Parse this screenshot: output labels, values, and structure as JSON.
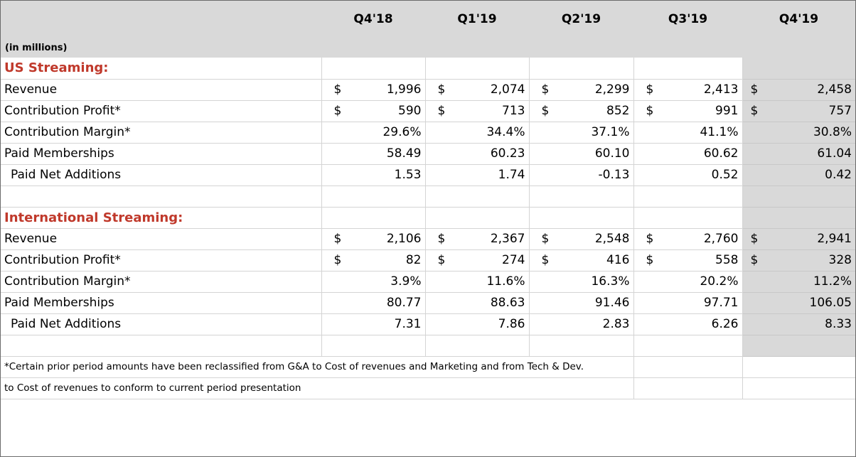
{
  "header": {
    "units_label": "(in millions)",
    "quarters": [
      "Q4'18",
      "Q1'19",
      "Q2'19",
      "Q3'19",
      "Q4'19"
    ]
  },
  "sections": [
    {
      "title": "US Streaming:",
      "rows": [
        {
          "label": "Revenue",
          "dollar": true,
          "values": [
            "1,996",
            "2,074",
            "2,299",
            "2,413",
            "2,458"
          ]
        },
        {
          "label": "Contribution Profit*",
          "dollar": true,
          "values": [
            "590",
            "713",
            "852",
            "991",
            "757"
          ]
        },
        {
          "label": "Contribution Margin*",
          "dollar": false,
          "values": [
            "29.6%",
            "34.4%",
            "37.1%",
            "41.1%",
            "30.8%"
          ]
        },
        {
          "label": "Paid Memberships",
          "dollar": false,
          "values": [
            "58.49",
            "60.23",
            "60.10",
            "60.62",
            "61.04"
          ]
        },
        {
          "label": "Paid Net Additions",
          "dollar": false,
          "indent": true,
          "values": [
            "1.53",
            "1.74",
            "-0.13",
            "0.52",
            "0.42"
          ]
        }
      ]
    },
    {
      "title": "International Streaming:",
      "rows": [
        {
          "label": "Revenue",
          "dollar": true,
          "values": [
            "2,106",
            "2,367",
            "2,548",
            "2,760",
            "2,941"
          ]
        },
        {
          "label": "Contribution Profit*",
          "dollar": true,
          "values": [
            "82",
            "274",
            "416",
            "558",
            "328"
          ]
        },
        {
          "label": "Contribution Margin*",
          "dollar": false,
          "values": [
            "3.9%",
            "11.6%",
            "16.3%",
            "20.2%",
            "11.2%"
          ]
        },
        {
          "label": "Paid Memberships",
          "dollar": false,
          "values": [
            "80.77",
            "88.63",
            "91.46",
            "97.71",
            "106.05"
          ]
        },
        {
          "label": "Paid Net Additions",
          "dollar": false,
          "indent": true,
          "values": [
            "7.31",
            "7.86",
            "2.83",
            "6.26",
            "8.33"
          ]
        }
      ]
    }
  ],
  "currency_symbol": "$",
  "footnote": {
    "line1": "*Certain prior period amounts have been reclassified from G&A to Cost of revenues and Marketing and from Tech & Dev.",
    "line2": "to Cost of revenues to conform to current period presentation"
  }
}
